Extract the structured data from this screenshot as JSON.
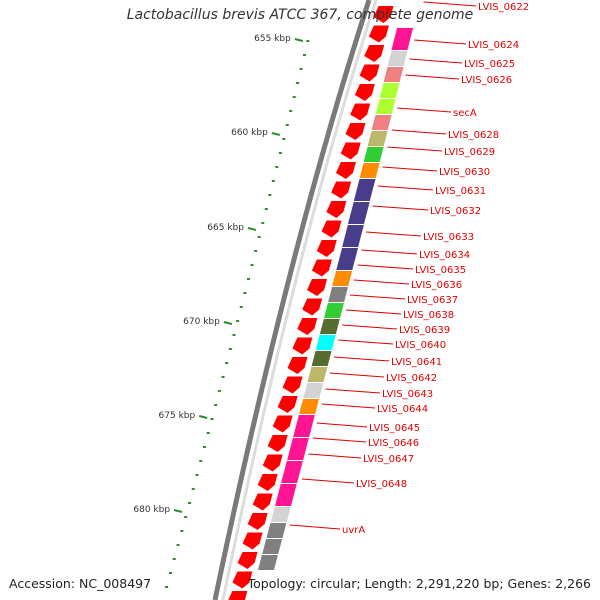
{
  "title": "Lactobacillus brevis ATCC 367, complete genome",
  "accession_text": "Accession: NC_008497",
  "topology_text": "Topology: circular; Length: 2,291,220 bp; Genes: 2,266",
  "scale_labels": [
    "655 kbp",
    "660 kbp",
    "665 kbp",
    "670 kbp",
    "675 kbp",
    "680 kbp"
  ],
  "colors": {
    "backbone": "#7a7a7a",
    "strand_cds": "#ff0000",
    "tick": "#2e8b2e",
    "label": "#e00000",
    "cog": [
      "#ff1493",
      "#d3d3d3",
      "#f08080",
      "#adff2f",
      "#bdb76b",
      "#32cd32",
      "#ff8c00",
      "#483d8b",
      "#556b2f",
      "#00ffff",
      "#808080"
    ]
  },
  "gene_labels": [
    "LVIS_0622",
    "LVIS_0624",
    "LVIS_0625",
    "LVIS_0626",
    "secA",
    "LVIS_0628",
    "LVIS_0629",
    "LVIS_0630",
    "LVIS_0631",
    "LVIS_0632",
    "LVIS_0633",
    "LVIS_0634",
    "LVIS_0635",
    "LVIS_0636",
    "LVIS_0637",
    "LVIS_0638",
    "LVIS_0639",
    "LVIS_0640",
    "LVIS_0641",
    "LVIS_0642",
    "LVIS_0643",
    "LVIS_0644",
    "LVIS_0645",
    "LVIS_0646",
    "LVIS_0647",
    "LVIS_0648",
    "uvrA"
  ]
}
